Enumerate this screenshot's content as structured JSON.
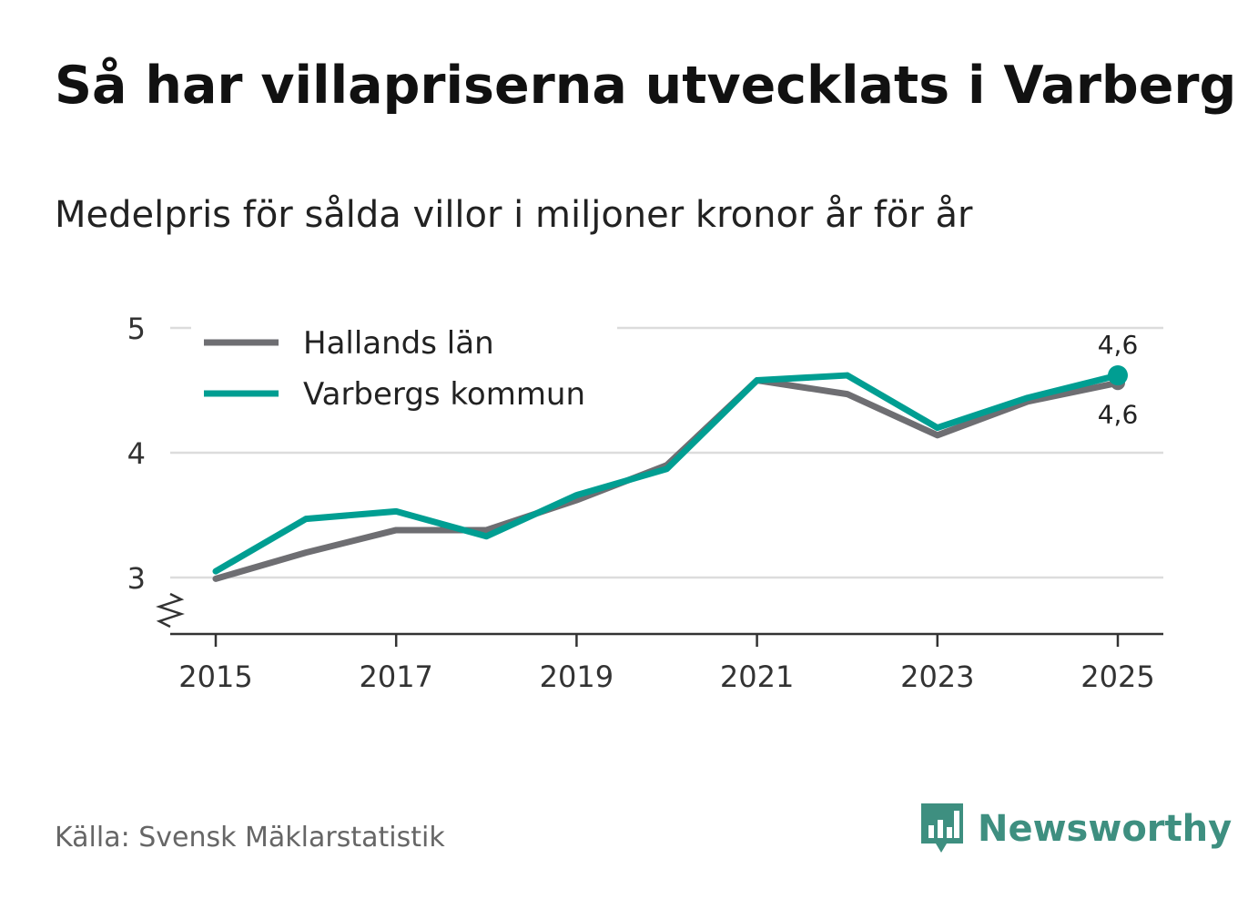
{
  "title": "Så har villapriserna utvecklats i Varberg",
  "subtitle": "Medelpris för sålda villor i miljoner kronor år för år",
  "source": "Källa: Svensk Mäklarstatistik",
  "brand": {
    "name": "Newsworthy",
    "icon": "newsworthy-logo-icon",
    "color": "#3e8f80"
  },
  "chart_data": {
    "type": "line",
    "title": "Så har villapriserna utvecklats i Varberg",
    "subtitle": "Medelpris för sålda villor i miljoner kronor år för år",
    "xlabel": "",
    "ylabel": "",
    "x": [
      2015,
      2016,
      2017,
      2018,
      2019,
      2020,
      2021,
      2022,
      2023,
      2024,
      2025
    ],
    "xticks": [
      2015,
      2017,
      2019,
      2021,
      2023,
      2025
    ],
    "xtick_labels": [
      "2015",
      "2017",
      "2019",
      "2021",
      "2023",
      "2025"
    ],
    "xlim": [
      2014.5,
      2025.5
    ],
    "ylim": [
      2.55,
      5
    ],
    "yticks": [
      3,
      4,
      5
    ],
    "ytick_labels": [
      "3",
      "4",
      "5"
    ],
    "y_axis_break": true,
    "grid": true,
    "legend_position": "top-left",
    "series": [
      {
        "name": "Hallands län",
        "color": "#6e6e72",
        "values": [
          2.99,
          3.2,
          3.38,
          3.38,
          3.62,
          3.9,
          4.58,
          4.47,
          4.14,
          4.41,
          4.56
        ],
        "end_label": "4,6"
      },
      {
        "name": "Varbergs kommun",
        "color": "#009e92",
        "values": [
          3.05,
          3.47,
          3.53,
          3.33,
          3.66,
          3.87,
          4.58,
          4.62,
          4.2,
          4.44,
          4.62
        ],
        "end_label": "4,6"
      }
    ]
  }
}
